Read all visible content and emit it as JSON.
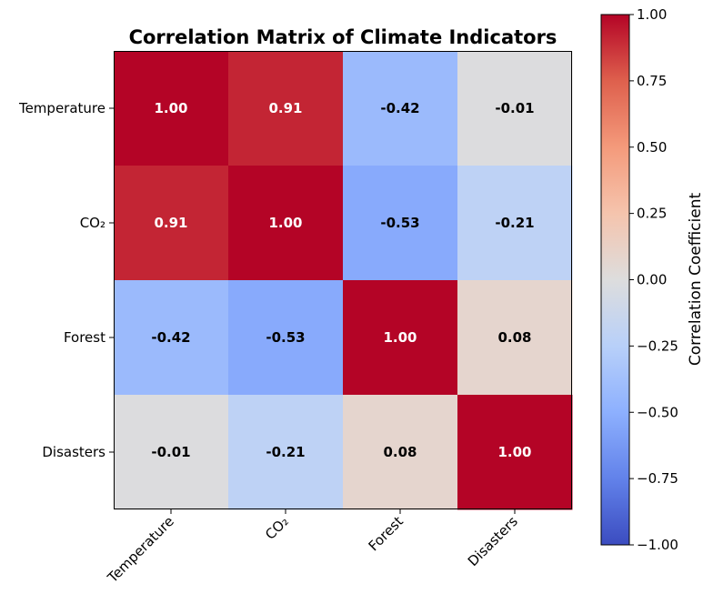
{
  "chart_data": {
    "type": "heatmap",
    "title": "Correlation Matrix of Climate Indicators",
    "row_labels": [
      "Temperature",
      "CO₂",
      "Forest",
      "Disasters"
    ],
    "col_labels": [
      "Temperature",
      "CO₂",
      "Forest",
      "Disasters"
    ],
    "values": [
      [
        1.0,
        0.91,
        -0.42,
        -0.01
      ],
      [
        0.91,
        1.0,
        -0.53,
        -0.21
      ],
      [
        -0.42,
        -0.53,
        1.0,
        0.08
      ],
      [
        -0.01,
        -0.21,
        0.08,
        1.0
      ]
    ],
    "cell_labels": [
      [
        "1.00",
        "0.91",
        "-0.42",
        "-0.01"
      ],
      [
        "0.91",
        "1.00",
        "-0.53",
        "-0.21"
      ],
      [
        "-0.42",
        "-0.53",
        "1.00",
        "0.08"
      ],
      [
        "-0.01",
        "-0.21",
        "0.08",
        "1.00"
      ]
    ],
    "colormap": "coolwarm",
    "vmin": -1,
    "vmax": 1,
    "colorbar": {
      "label": "Correlation Coefficient",
      "ticks": [
        1.0,
        0.75,
        0.5,
        0.25,
        0.0,
        -0.25,
        -0.5,
        -0.75,
        -1.0
      ],
      "tick_labels": [
        "1.00",
        "0.75",
        "0.50",
        "0.25",
        "0.00",
        "−0.25",
        "−0.50",
        "−0.75",
        "−1.00"
      ]
    },
    "colors": {
      "cold": "#3b4cc0",
      "neutral": "#dddddd",
      "hot": "#b40426"
    }
  }
}
